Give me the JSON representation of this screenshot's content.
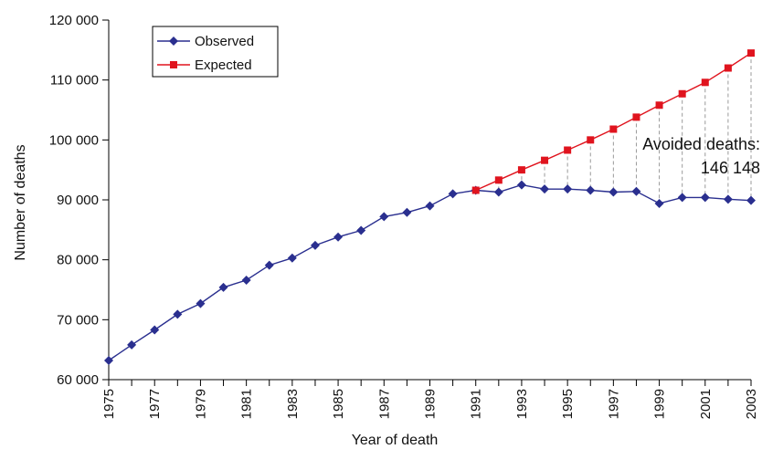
{
  "chart_data": {
    "type": "line",
    "xlabel": "Year of death",
    "ylabel": "Number of deaths",
    "xlim": [
      1975,
      2003
    ],
    "ylim": [
      60000,
      120000
    ],
    "yticks": [
      60000,
      70000,
      80000,
      90000,
      100000,
      110000,
      120000
    ],
    "ytick_labels": [
      "60 000",
      "70 000",
      "80 000",
      "90 000",
      "100 000",
      "110 000",
      "120 000"
    ],
    "xtick_labels": [
      "1975",
      "1977",
      "1979",
      "1981",
      "1983",
      "1985",
      "1987",
      "1989",
      "1991",
      "1993",
      "1995",
      "1997",
      "1999",
      "2001",
      "2003"
    ],
    "legend_position": "top-left",
    "series": [
      {
        "name": "Observed",
        "color": "#2a2f8f",
        "marker": "diamond",
        "x": [
          1975,
          1976,
          1977,
          1978,
          1979,
          1980,
          1981,
          1982,
          1983,
          1984,
          1985,
          1986,
          1987,
          1988,
          1989,
          1990,
          1991,
          1992,
          1993,
          1994,
          1995,
          1996,
          1997,
          1998,
          1999,
          2000,
          2001,
          2002,
          2003
        ],
        "values": [
          63200,
          65800,
          68300,
          70900,
          72700,
          75400,
          76600,
          79100,
          80300,
          82400,
          83800,
          84900,
          87200,
          87900,
          89000,
          91000,
          91600,
          91300,
          92500,
          91800,
          91800,
          91600,
          91300,
          91400,
          89400,
          90400,
          90400,
          90100,
          89900
        ]
      },
      {
        "name": "Expected",
        "color": "#e0141e",
        "marker": "square",
        "x": [
          1991,
          1992,
          1993,
          1994,
          1995,
          1996,
          1997,
          1998,
          1999,
          2000,
          2001,
          2002,
          2003
        ],
        "values": [
          91600,
          93300,
          95000,
          96600,
          98300,
          100000,
          101800,
          103800,
          105800,
          107700,
          109600,
          112000,
          114500
        ]
      }
    ],
    "annotation": {
      "line1": "Avoided deaths:",
      "line2": "146 148"
    }
  }
}
